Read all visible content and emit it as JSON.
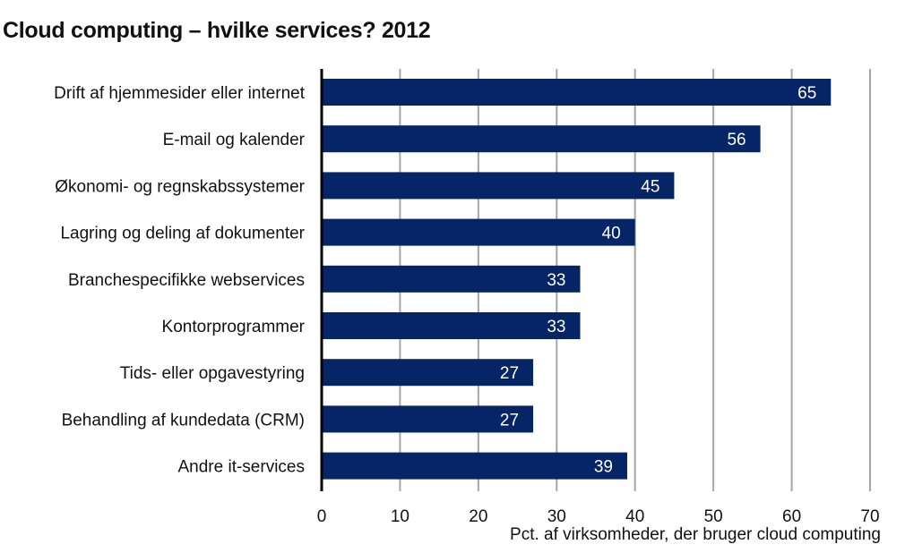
{
  "chart_data": {
    "type": "bar",
    "orientation": "horizontal",
    "title": "Cloud computing – hvilke services? 2012",
    "categories": [
      "Drift af hjemmesider eller internet",
      "E-mail og kalender",
      "Økonomi- og regnskabssystemer",
      "Lagring og deling af dokumenter",
      "Branchespecifikke webservices",
      "Kontorprogrammer",
      "Tids- eller opgavestyring",
      "Behandling af kundedata (CRM)",
      "Andre it-services"
    ],
    "values": [
      65,
      56,
      45,
      40,
      33,
      33,
      27,
      27,
      39
    ],
    "data_labels": [
      "65",
      "56",
      "45",
      "40",
      "33",
      "33",
      "27",
      "27",
      "39"
    ],
    "xlabel": "Pct. af virksomheder, der bruger cloud computing",
    "ylabel": "",
    "xlim": [
      0,
      70
    ],
    "xticks": [
      0,
      10,
      20,
      30,
      40,
      50,
      60,
      70
    ],
    "xtick_labels": [
      "0",
      "10",
      "20",
      "30",
      "40",
      "50",
      "60",
      "70"
    ],
    "grid": "vertical",
    "legend": "none",
    "colors": {
      "bar": "#052566",
      "gridline": "#a6a6a6",
      "axis": "#000000",
      "value_label": "#ffffff"
    }
  }
}
